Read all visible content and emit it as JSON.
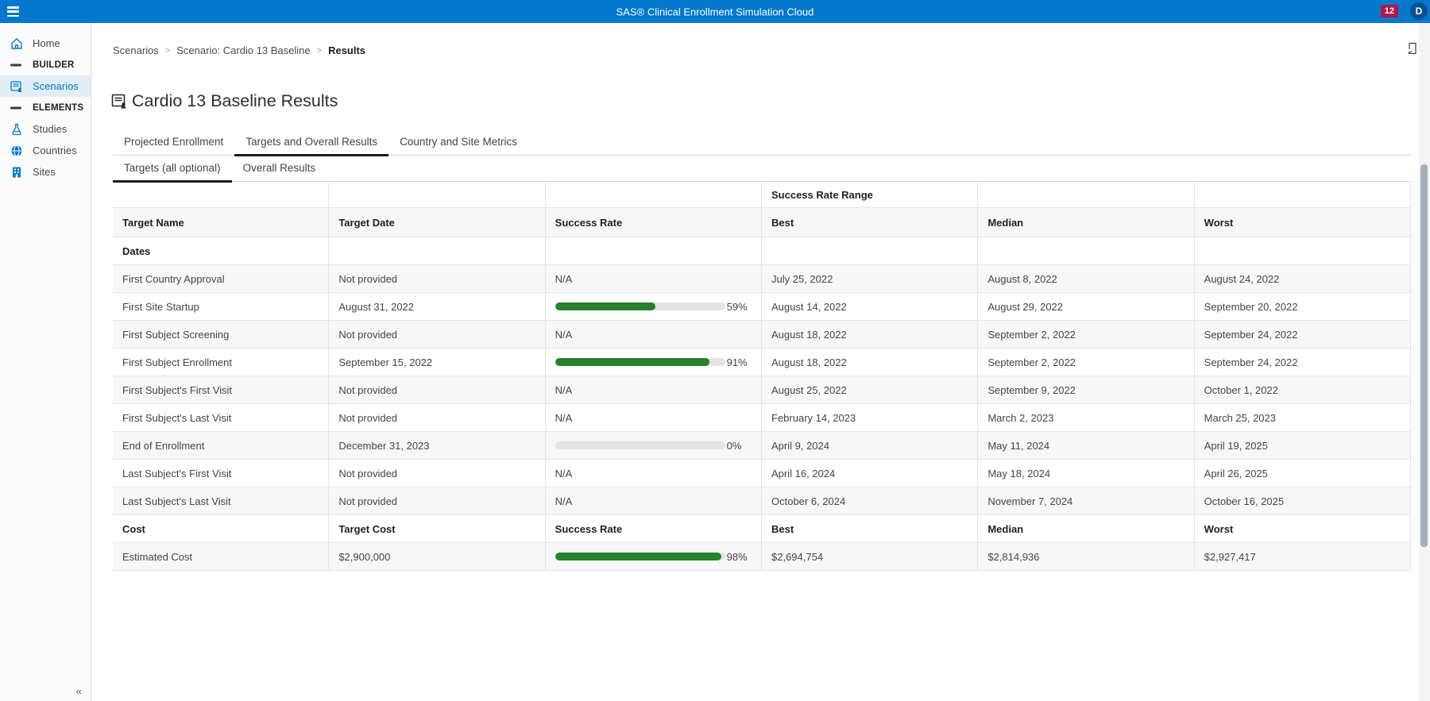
{
  "app": {
    "title": "SAS® Clinical Enrollment Simulation Cloud",
    "notification_count": "12",
    "avatar_initial": "D",
    "accent_color": "#0378cd",
    "badge_color": "#b0164a",
    "success_bar_color": "#27802a"
  },
  "sidebar": {
    "items": [
      {
        "label": "Home",
        "icon": "home-icon",
        "type": "item"
      },
      {
        "label": "BUILDER",
        "icon": "dash-icon",
        "type": "section"
      },
      {
        "label": "Scenarios",
        "icon": "scenario-icon",
        "type": "item",
        "selected": true
      },
      {
        "label": "ELEMENTS",
        "icon": "dash-icon",
        "type": "section"
      },
      {
        "label": "Studies",
        "icon": "flask-icon",
        "type": "item"
      },
      {
        "label": "Countries",
        "icon": "globe-icon",
        "type": "item"
      },
      {
        "label": "Sites",
        "icon": "building-icon",
        "type": "item"
      }
    ],
    "collapse_label": "«"
  },
  "breadcrumb": {
    "items": [
      "Scenarios",
      "Scenario: Cardio 13 Baseline",
      "Results"
    ],
    "separator": ">"
  },
  "page": {
    "title": "Cardio 13 Baseline Results"
  },
  "tabs": {
    "main": [
      {
        "label": "Projected Enrollment",
        "active": false
      },
      {
        "label": "Targets and Overall Results",
        "active": true
      },
      {
        "label": "Country and Site Metrics",
        "active": false
      }
    ],
    "sub": [
      {
        "label": "Targets (all optional)",
        "active": true
      },
      {
        "label": "Overall Results",
        "active": false
      }
    ]
  },
  "table": {
    "span_header": "Success Rate Range",
    "columns": [
      "Target Name",
      "Target Date",
      "Success Rate",
      "Best",
      "Median",
      "Worst"
    ],
    "rows": [
      {
        "group": true,
        "cells": [
          "Dates",
          "",
          "",
          "",
          "",
          ""
        ]
      },
      {
        "group": false,
        "cells": [
          "First Country Approval",
          "Not provided",
          "N/A",
          "July 25, 2022",
          "August 8, 2022",
          "August 24, 2022"
        ]
      },
      {
        "group": false,
        "cells": [
          "First Site Startup",
          "August 31, 2022",
          "",
          "August 14, 2022",
          "August 29, 2022",
          "September 20, 2022"
        ],
        "bar": {
          "pct": 59,
          "label": "59%"
        }
      },
      {
        "group": false,
        "cells": [
          "First Subject Screening",
          "Not provided",
          "N/A",
          "August 18, 2022",
          "September 2, 2022",
          "September 24, 2022"
        ]
      },
      {
        "group": false,
        "cells": [
          "First Subject Enrollment",
          "September 15, 2022",
          "",
          "August 18, 2022",
          "September 2, 2022",
          "September 24, 2022"
        ],
        "bar": {
          "pct": 91,
          "label": "91%"
        }
      },
      {
        "group": false,
        "cells": [
          "First Subject's First Visit",
          "Not provided",
          "N/A",
          "August 25, 2022",
          "September 9, 2022",
          "October 1, 2022"
        ]
      },
      {
        "group": false,
        "cells": [
          "First Subject's Last Visit",
          "Not provided",
          "N/A",
          "February 14, 2023",
          "March 2, 2023",
          "March 25, 2023"
        ]
      },
      {
        "group": false,
        "cells": [
          "End of Enrollment",
          "December 31, 2023",
          "",
          "April 9, 2024",
          "May 11, 2024",
          "April 19, 2025"
        ],
        "bar": {
          "pct": 0,
          "label": "0%"
        }
      },
      {
        "group": false,
        "cells": [
          "Last Subject's First Visit",
          "Not provided",
          "N/A",
          "April 16, 2024",
          "May 18, 2024",
          "April 26, 2025"
        ]
      },
      {
        "group": false,
        "cells": [
          "Last Subject's Last Visit",
          "Not provided",
          "N/A",
          "October 6, 2024",
          "November 7, 2024",
          "October 16, 2025"
        ]
      },
      {
        "group": true,
        "cells": [
          "Cost",
          "Target Cost",
          "Success Rate",
          "Best",
          "Median",
          "Worst"
        ]
      },
      {
        "group": false,
        "cells": [
          "Estimated Cost",
          "$2,900,000",
          "",
          "$2,694,754",
          "$2,814,936",
          "$2,927,417"
        ],
        "bar": {
          "pct": 98,
          "label": "98%"
        }
      }
    ]
  }
}
